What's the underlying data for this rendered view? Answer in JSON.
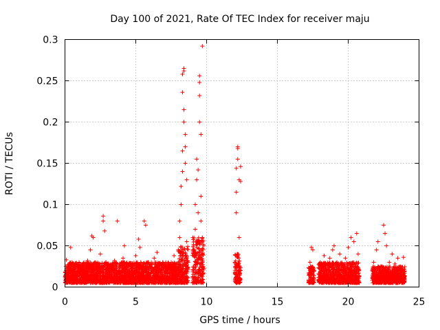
{
  "chart_data": {
    "type": "scatter",
    "title": "Day 100 of 2021, Rate Of TEC Index for receiver maju",
    "xlabel": "GPS time / hours",
    "ylabel": "ROTI / TECUs",
    "xlim": [
      0,
      25
    ],
    "ylim": [
      0,
      0.3
    ],
    "x_ticks": [
      0,
      5,
      10,
      15,
      20,
      25
    ],
    "y_ticks": [
      0,
      0.05,
      0.1,
      0.15,
      0.2,
      0.25,
      0.3
    ],
    "x_tick_labels": [
      "0",
      "5",
      "10",
      "15",
      "20",
      "25"
    ],
    "y_tick_labels": [
      "0",
      "0.05",
      "0.1",
      "0.15",
      "0.2",
      "0.25",
      "0.3"
    ],
    "grid": true,
    "marker": "+",
    "color": "#ff0000",
    "series": [
      {
        "name": "ROTI",
        "points": [
          [
            0.1,
            0.012
          ],
          [
            0.1,
            0.033
          ],
          [
            0.2,
            0.02
          ],
          [
            0.3,
            0.028
          ],
          [
            0.4,
            0.048
          ],
          [
            0.5,
            0.015
          ],
          [
            0.5,
            0.03
          ],
          [
            0.7,
            0.022
          ],
          [
            0.9,
            0.018
          ],
          [
            1.0,
            0.03
          ],
          [
            1.2,
            0.014
          ],
          [
            1.3,
            0.025
          ],
          [
            1.5,
            0.02
          ],
          [
            1.6,
            0.032
          ],
          [
            1.8,
            0.045
          ],
          [
            1.9,
            0.062
          ],
          [
            2.0,
            0.06
          ],
          [
            2.1,
            0.02
          ],
          [
            2.3,
            0.028
          ],
          [
            2.5,
            0.04
          ],
          [
            2.7,
            0.086
          ],
          [
            2.7,
            0.08
          ],
          [
            2.8,
            0.068
          ],
          [
            2.9,
            0.03
          ],
          [
            3.1,
            0.018
          ],
          [
            3.3,
            0.025
          ],
          [
            3.5,
            0.032
          ],
          [
            3.7,
            0.08
          ],
          [
            3.9,
            0.02
          ],
          [
            4.1,
            0.035
          ],
          [
            4.2,
            0.05
          ],
          [
            4.4,
            0.022
          ],
          [
            4.6,
            0.028
          ],
          [
            4.8,
            0.015
          ],
          [
            5.0,
            0.038
          ],
          [
            5.2,
            0.058
          ],
          [
            5.3,
            0.048
          ],
          [
            5.5,
            0.025
          ],
          [
            5.6,
            0.08
          ],
          [
            5.7,
            0.075
          ],
          [
            5.9,
            0.03
          ],
          [
            6.1,
            0.02
          ],
          [
            6.3,
            0.035
          ],
          [
            6.5,
            0.042
          ],
          [
            6.7,
            0.022
          ],
          [
            6.9,
            0.03
          ],
          [
            7.1,
            0.025
          ],
          [
            7.3,
            0.018
          ],
          [
            7.5,
            0.03
          ],
          [
            7.7,
            0.038
          ],
          [
            7.9,
            0.028
          ],
          [
            8.0,
            0.045
          ],
          [
            8.1,
            0.06
          ],
          [
            8.1,
            0.08
          ],
          [
            8.2,
            0.1
          ],
          [
            8.2,
            0.122
          ],
          [
            8.3,
            0.14
          ],
          [
            8.3,
            0.165
          ],
          [
            8.3,
            0.236
          ],
          [
            8.3,
            0.258
          ],
          [
            8.4,
            0.265
          ],
          [
            8.4,
            0.262
          ],
          [
            8.4,
            0.215
          ],
          [
            8.4,
            0.2
          ],
          [
            8.5,
            0.185
          ],
          [
            8.5,
            0.17
          ],
          [
            8.5,
            0.15
          ],
          [
            8.6,
            0.13
          ],
          [
            8.6,
            0.055
          ],
          [
            8.7,
            0.03
          ],
          [
            9.1,
            0.04
          ],
          [
            9.2,
            0.07
          ],
          [
            9.2,
            0.1
          ],
          [
            9.3,
            0.13
          ],
          [
            9.3,
            0.155
          ],
          [
            9.4,
            0.142
          ],
          [
            9.4,
            0.09
          ],
          [
            9.5,
            0.232
          ],
          [
            9.5,
            0.248
          ],
          [
            9.5,
            0.256
          ],
          [
            9.5,
            0.2
          ],
          [
            9.6,
            0.185
          ],
          [
            9.6,
            0.11
          ],
          [
            9.6,
            0.08
          ],
          [
            9.7,
            0.292
          ],
          [
            9.7,
            0.06
          ],
          [
            9.7,
            0.03
          ],
          [
            12.0,
            0.03
          ],
          [
            12.1,
            0.09
          ],
          [
            12.1,
            0.115
          ],
          [
            12.1,
            0.144
          ],
          [
            12.2,
            0.17
          ],
          [
            12.2,
            0.168
          ],
          [
            12.2,
            0.155
          ],
          [
            12.3,
            0.13
          ],
          [
            12.3,
            0.06
          ],
          [
            12.4,
            0.146
          ],
          [
            12.4,
            0.128
          ],
          [
            12.4,
            0.02
          ],
          [
            17.3,
            0.03
          ],
          [
            17.4,
            0.048
          ],
          [
            17.5,
            0.045
          ],
          [
            17.6,
            0.02
          ],
          [
            18.1,
            0.025
          ],
          [
            18.3,
            0.038
          ],
          [
            18.5,
            0.02
          ],
          [
            18.7,
            0.035
          ],
          [
            18.9,
            0.045
          ],
          [
            19.0,
            0.05
          ],
          [
            19.2,
            0.03
          ],
          [
            19.4,
            0.04
          ],
          [
            19.6,
            0.025
          ],
          [
            19.8,
            0.035
          ],
          [
            20.0,
            0.048
          ],
          [
            20.2,
            0.06
          ],
          [
            20.4,
            0.055
          ],
          [
            20.6,
            0.065
          ],
          [
            20.7,
            0.04
          ],
          [
            21.8,
            0.03
          ],
          [
            22.0,
            0.045
          ],
          [
            22.1,
            0.055
          ],
          [
            22.3,
            0.025
          ],
          [
            22.5,
            0.075
          ],
          [
            22.6,
            0.065
          ],
          [
            22.7,
            0.05
          ],
          [
            22.9,
            0.03
          ],
          [
            23.1,
            0.04
          ],
          [
            23.3,
            0.028
          ],
          [
            23.5,
            0.035
          ],
          [
            23.7,
            0.022
          ],
          [
            23.9,
            0.036
          ]
        ],
        "dense_bands": [
          {
            "x": [
              0.0,
              8.0
            ],
            "y": [
              0.005,
              0.03
            ]
          },
          {
            "x": [
              8.0,
              8.7
            ],
            "y": [
              0.005,
              0.05
            ]
          },
          {
            "x": [
              9.0,
              9.8
            ],
            "y": [
              0.005,
              0.06
            ]
          },
          {
            "x": [
              12.0,
              12.4
            ],
            "y": [
              0.005,
              0.04
            ]
          },
          {
            "x": [
              17.2,
              17.6
            ],
            "y": [
              0.005,
              0.025
            ]
          },
          {
            "x": [
              17.9,
              20.8
            ],
            "y": [
              0.005,
              0.03
            ]
          },
          {
            "x": [
              21.7,
              24.0
            ],
            "y": [
              0.005,
              0.025
            ]
          }
        ]
      }
    ]
  }
}
